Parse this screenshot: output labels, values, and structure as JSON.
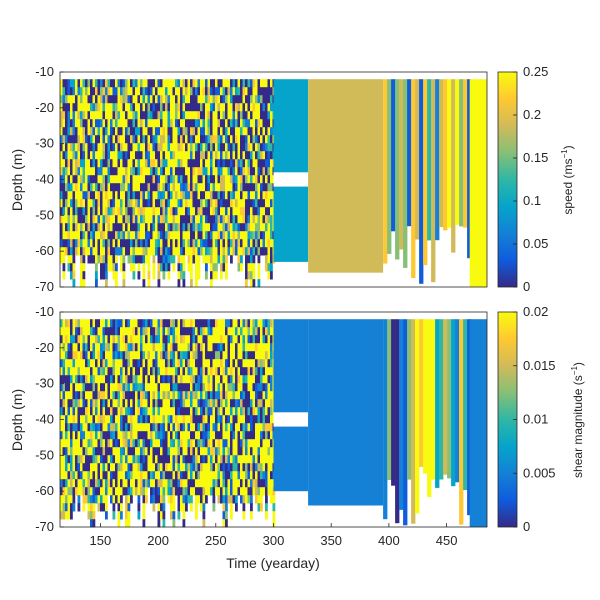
{
  "colormap": [
    "#352a87",
    "#0f5cdd",
    "#1481d6",
    "#06a4ca",
    "#2eb7a4",
    "#87bf77",
    "#d1bb59",
    "#fec832",
    "#f9fb0e"
  ],
  "chart_data": [
    {
      "type": "heatmap",
      "title": "",
      "xlabel": "",
      "ylabel": "Depth (m)",
      "xlim": [
        115,
        485
      ],
      "ylim": [
        -70,
        -10
      ],
      "yticks": [
        -70,
        -60,
        -50,
        -40,
        -30,
        -20,
        -10
      ],
      "ytick_labels": [
        "-70",
        "-60",
        "-50",
        "-40",
        "-30",
        "-20",
        "-10"
      ],
      "colorbar": {
        "label_main": "speed (ms",
        "label_sup": "−1",
        "label_end": ")",
        "range": [
          0,
          0.25
        ],
        "ticks": [
          0,
          0.05,
          0.1,
          0.15,
          0.2,
          0.25
        ],
        "tick_labels": [
          "0",
          "0.05",
          "0.1",
          "0.15",
          "0.2",
          "0.25"
        ]
      },
      "segments": [
        {
          "x": [
            115,
            300
          ],
          "depth": [
            -70,
            -12
          ],
          "pattern": "noisy"
        },
        {
          "x": [
            300,
            330
          ],
          "depth": [
            -63,
            -12
          ],
          "level": 0.1,
          "gap_depth": [
            -42,
            -38
          ]
        },
        {
          "x": [
            330,
            395
          ],
          "depth": [
            -66,
            -12
          ],
          "level": 0.19
        },
        {
          "x": [
            395,
            470
          ],
          "depth": [
            -70,
            -12
          ],
          "pattern": "vertical-bands"
        },
        {
          "x": [
            470,
            485
          ],
          "depth": [
            -70,
            -12
          ],
          "level": 0.25
        }
      ]
    },
    {
      "type": "heatmap",
      "title": "",
      "xlabel": "Time (yearday)",
      "ylabel": "Depth (m)",
      "xlim": [
        115,
        485
      ],
      "ylim": [
        -70,
        -10
      ],
      "xticks": [
        150,
        200,
        250,
        300,
        350,
        400,
        450
      ],
      "xtick_labels": [
        "150",
        "200",
        "250",
        "300",
        "350",
        "400",
        "450"
      ],
      "yticks": [
        -70,
        -60,
        -50,
        -40,
        -30,
        -20,
        -10
      ],
      "ytick_labels": [
        "-70",
        "-60",
        "-50",
        "-40",
        "-30",
        "-20",
        "-10"
      ],
      "colorbar": {
        "label_main": "shear magnitude (s",
        "label_sup": "−1",
        "label_end": ")",
        "range": [
          0,
          0.02
        ],
        "ticks": [
          0,
          0.005,
          0.01,
          0.015,
          0.02
        ],
        "tick_labels": [
          "0",
          "0.005",
          "0.01",
          "0.015",
          "0.02"
        ]
      },
      "segments": [
        {
          "x": [
            115,
            300
          ],
          "depth": [
            -70,
            -12
          ],
          "pattern": "noisy"
        },
        {
          "x": [
            300,
            330
          ],
          "depth": [
            -60,
            -12
          ],
          "level": 0.004,
          "gap_depth": [
            -42,
            -38
          ]
        },
        {
          "x": [
            330,
            395
          ],
          "depth": [
            -64,
            -12
          ],
          "level": 0.005
        },
        {
          "x": [
            395,
            470
          ],
          "depth": [
            -70,
            -12
          ],
          "pattern": "vertical-bands"
        },
        {
          "x": [
            470,
            485
          ],
          "depth": [
            -70,
            -12
          ],
          "level": 0.004
        }
      ]
    }
  ]
}
